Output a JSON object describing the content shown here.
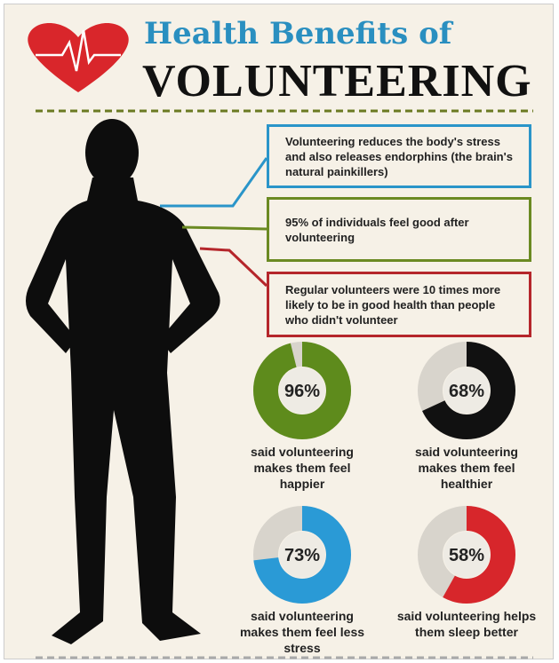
{
  "header": {
    "title_line1": "Health Benefits of",
    "title_line2": "VOLUNTEERING"
  },
  "facts": [
    {
      "text": "Volunteering reduces the body's stress and also releases endorphins (the brain's natural painkillers)",
      "color": "#2a95c9"
    },
    {
      "text": "95% of individuals feel good after volunteering",
      "color": "#6b8a22"
    },
    {
      "text": "Regular volunteers were 10 times more likely to be in good health than people who didn't volunteer",
      "color": "#b5262b"
    }
  ],
  "donuts": [
    {
      "value": 96,
      "label": "96%",
      "caption": "said volunteering makes them feel happier",
      "color": "#5e8b1c"
    },
    {
      "value": 68,
      "label": "68%",
      "caption": "said volunteering makes them feel healthier",
      "color": "#111111"
    },
    {
      "value": 73,
      "label": "73%",
      "caption": "said volunteering makes them feel less stress",
      "color": "#2a9ad6"
    },
    {
      "value": 58,
      "label": "58%",
      "caption": "said volunteering helps them sleep better",
      "color": "#d7262b"
    }
  ]
}
